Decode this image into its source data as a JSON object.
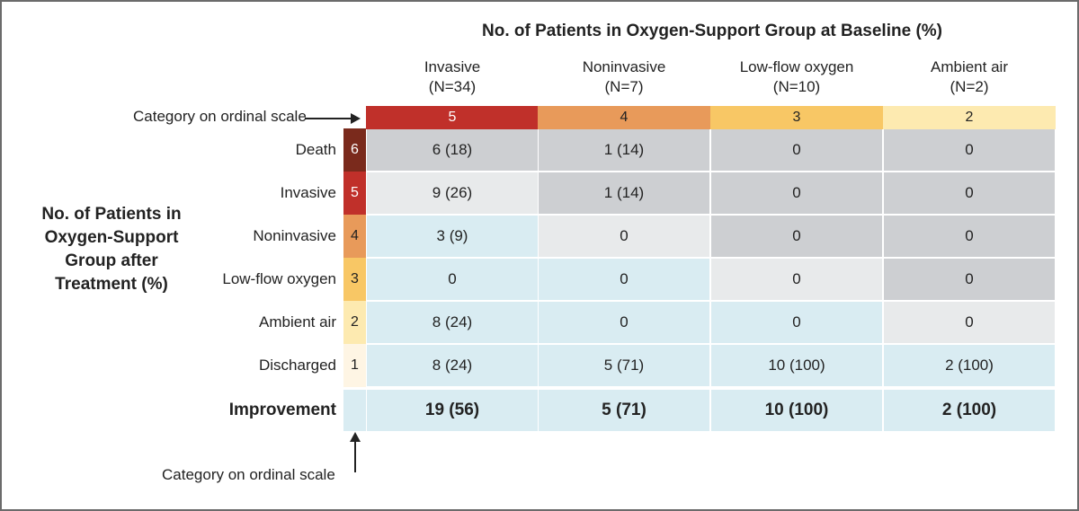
{
  "chart_data": {
    "type": "table",
    "title": "No. of Patients in Oxygen-Support Group at Baseline (%)",
    "ylabel": "No. of Patients in Oxygen-Support Group after Treatment (%)",
    "ordinal_label": "Category on ordinal scale",
    "columns": [
      {
        "name": "Invasive",
        "n": "(N=34)",
        "category": "5",
        "color": "#c0302a",
        "text_color": "#ffffff"
      },
      {
        "name": "Noninvasive",
        "n": "(N=7)",
        "category": "4",
        "color": "#e89a5a",
        "text_color": "#222222"
      },
      {
        "name": "Low-flow oxygen",
        "n": "(N=10)",
        "category": "3",
        "color": "#f8c765",
        "text_color": "#222222"
      },
      {
        "name": "Ambient air",
        "n": "(N=2)",
        "category": "2",
        "color": "#fdeab0",
        "text_color": "#222222"
      }
    ],
    "rows": [
      {
        "name": "Death",
        "category": "6",
        "color": "#7a2a1c",
        "text_color": "#ffffff",
        "values": [
          "6 (18)",
          "1 (14)",
          "0",
          "0"
        ]
      },
      {
        "name": "Invasive",
        "category": "5",
        "color": "#c0302a",
        "text_color": "#ffffff",
        "values": [
          "9 (26)",
          "1 (14)",
          "0",
          "0"
        ]
      },
      {
        "name": "Noninvasive",
        "category": "4",
        "color": "#e89a5a",
        "text_color": "#222222",
        "values": [
          "3 (9)",
          "0",
          "0",
          "0"
        ]
      },
      {
        "name": "Low-flow oxygen",
        "category": "3",
        "color": "#f8c765",
        "text_color": "#222222",
        "values": [
          "0",
          "0",
          "0",
          "0"
        ]
      },
      {
        "name": "Ambient air",
        "category": "2",
        "color": "#fdeab0",
        "text_color": "#222222",
        "values": [
          "8 (24)",
          "0",
          "0",
          "0"
        ]
      },
      {
        "name": "Discharged",
        "category": "1",
        "color": "#fef5e4",
        "text_color": "#222222",
        "values": [
          "8 (24)",
          "5 (71)",
          "10 (100)",
          "2 (100)"
        ]
      }
    ],
    "improvement": {
      "name": "Improvement",
      "values": [
        "19 (56)",
        "5 (71)",
        "10 (100)",
        "2 (100)"
      ]
    },
    "cell_colors": {
      "worse": "#cdcfd2",
      "same": "#e8eaeb",
      "better": "#d9ecf2"
    }
  }
}
